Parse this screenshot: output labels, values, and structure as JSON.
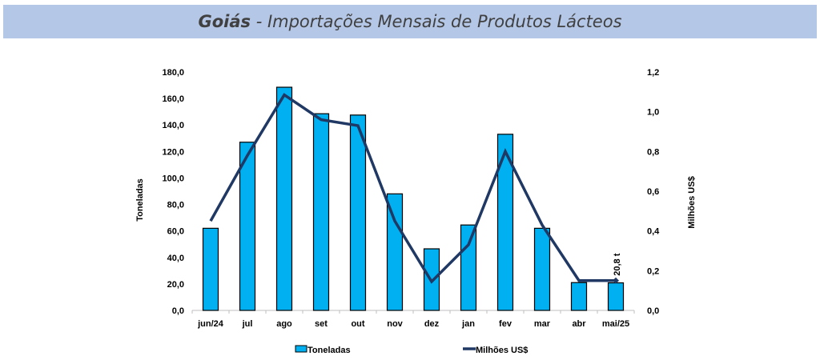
{
  "header": {
    "title_bold": "Goiás",
    "title_rest": " - Importações Mensais de Produtos Lácteos"
  },
  "chart_data": {
    "type": "bar",
    "title": "Goiás - Importações Mensais de Produtos Lácteos",
    "categories": [
      "jun/24",
      "jul",
      "ago",
      "set",
      "out",
      "nov",
      "dez",
      "jan",
      "fev",
      "mar",
      "abr",
      "mai/25"
    ],
    "series": [
      {
        "name": "Toneladas",
        "type": "bar",
        "axis": "left",
        "color": "#00b0f0",
        "values": [
          62.0,
          127.0,
          168.5,
          148.5,
          147.5,
          88.0,
          46.5,
          64.5,
          133.0,
          62.0,
          21.0,
          20.8
        ]
      },
      {
        "name": "Milhões US$",
        "type": "line",
        "axis": "right",
        "color": "#1f3864",
        "values": [
          0.45,
          0.78,
          1.085,
          0.96,
          0.93,
          0.45,
          0.145,
          0.33,
          0.8,
          0.43,
          0.15,
          0.15
        ]
      }
    ],
    "ylabel": "Toneladas",
    "ylabel_right": "Milhões US$",
    "ylim": [
      0,
      180
    ],
    "ylim_right": [
      0,
      1.2
    ],
    "yticks": [
      "0,0",
      "20,0",
      "40,0",
      "60,0",
      "80,0",
      "100,0",
      "120,0",
      "140,0",
      "160,0",
      "180,0"
    ],
    "yticks_right": [
      "0,0",
      "0,2",
      "0,4",
      "0,6",
      "0,8",
      "1,0",
      "1,2"
    ],
    "annotations": [
      {
        "category": "mai/25",
        "text": "20,8 t"
      }
    ],
    "grid": false,
    "legend": {
      "position": "bottom",
      "entries": [
        "Toneladas",
        "Milhões US$"
      ]
    }
  }
}
